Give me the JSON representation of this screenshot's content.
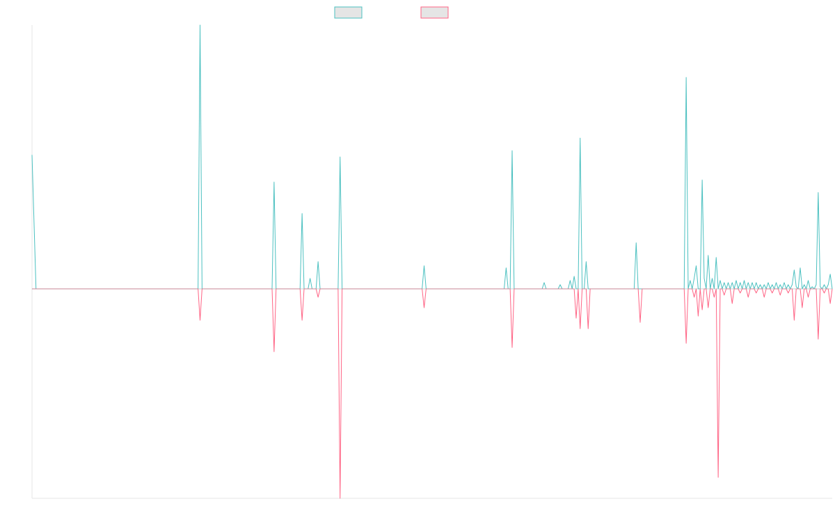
{
  "colors": {
    "series_a": "#4bc0c0",
    "series_b": "#ff6384",
    "legend_fill": "#e5e5e5",
    "axis": "#e6e6e6"
  },
  "chart_data": {
    "type": "line",
    "title": "",
    "xlabel": "",
    "ylabel": "",
    "x_range": [
      0,
      200
    ],
    "ylim": [
      -1,
      1.26
    ],
    "grid": false,
    "legend": "top-center",
    "series": [
      {
        "color": "#4bc0c0",
        "points": [
          [
            0,
            0.64
          ],
          [
            1,
            0.0
          ],
          [
            200,
            0.0
          ]
        ],
        "peaks": [
          [
            42,
            1.26
          ],
          [
            60.5,
            0.51
          ],
          [
            67.5,
            0.36
          ],
          [
            69.5,
            0.05
          ],
          [
            71.5,
            0.13
          ],
          [
            77,
            0.63
          ],
          [
            98,
            0.11
          ],
          [
            118.5,
            0.1
          ],
          [
            120,
            0.66
          ],
          [
            128,
            0.03
          ],
          [
            132,
            0.02
          ],
          [
            134.5,
            0.04
          ],
          [
            135.5,
            0.06
          ],
          [
            137,
            0.72
          ],
          [
            138.5,
            0.13
          ],
          [
            151,
            0.22
          ],
          [
            163.5,
            1.01
          ],
          [
            164.5,
            0.04
          ],
          [
            165.5,
            0.05
          ],
          [
            166,
            0.11
          ],
          [
            167.5,
            0.52
          ],
          [
            168,
            0.05
          ],
          [
            169,
            0.16
          ],
          [
            170,
            0.05
          ],
          [
            171,
            0.15
          ],
          [
            172,
            0.04
          ],
          [
            173,
            0.03
          ],
          [
            174,
            0.03
          ],
          [
            175,
            0.03
          ],
          [
            176,
            0.04
          ],
          [
            177,
            0.03
          ],
          [
            178,
            0.04
          ],
          [
            179,
            0.03
          ],
          [
            180,
            0.03
          ],
          [
            181,
            0.03
          ],
          [
            182,
            0.02
          ],
          [
            183,
            0.02
          ],
          [
            184,
            0.03
          ],
          [
            185,
            0.02
          ],
          [
            186,
            0.03
          ],
          [
            187,
            0.02
          ],
          [
            188,
            0.03
          ],
          [
            189,
            0.02
          ],
          [
            190,
            0.02
          ],
          [
            191,
            0.01
          ],
          [
            192,
            0.03
          ],
          [
            193,
            0.02
          ],
          [
            194,
            0.02
          ],
          [
            195,
            0.01
          ],
          [
            196,
            0.02
          ],
          [
            197,
            0.01
          ],
          [
            198,
            0.02
          ],
          [
            199,
            0.02
          ],
          [
            196.5,
            0.46
          ],
          [
            192,
            0.1
          ],
          [
            194,
            0.04
          ],
          [
            190.5,
            0.09
          ],
          [
            199.5,
            0.07
          ]
        ]
      },
      {
        "color": "#ff6384",
        "peaks": [
          [
            42,
            -0.15
          ],
          [
            60.5,
            -0.3
          ],
          [
            67.5,
            -0.15
          ],
          [
            71.5,
            -0.04
          ],
          [
            77,
            -1.0
          ],
          [
            98,
            -0.09
          ],
          [
            120,
            -0.28
          ],
          [
            136,
            -0.14
          ],
          [
            137,
            -0.19
          ],
          [
            139,
            -0.19
          ],
          [
            152,
            -0.16
          ],
          [
            163.5,
            -0.26
          ],
          [
            165.5,
            -0.04
          ],
          [
            166.5,
            -0.13
          ],
          [
            167.5,
            -0.1
          ],
          [
            169,
            -0.09
          ],
          [
            170.5,
            -0.04
          ],
          [
            171.5,
            -0.9
          ],
          [
            173,
            -0.03
          ],
          [
            175,
            -0.07
          ],
          [
            177,
            -0.02
          ],
          [
            179,
            -0.04
          ],
          [
            181,
            -0.02
          ],
          [
            183,
            -0.04
          ],
          [
            185,
            -0.02
          ],
          [
            187,
            -0.03
          ],
          [
            189,
            -0.02
          ],
          [
            190.5,
            -0.15
          ],
          [
            192.5,
            -0.09
          ],
          [
            194,
            -0.04
          ],
          [
            196.5,
            -0.24
          ],
          [
            198,
            -0.02
          ],
          [
            199.5,
            -0.07
          ]
        ]
      }
    ]
  }
}
